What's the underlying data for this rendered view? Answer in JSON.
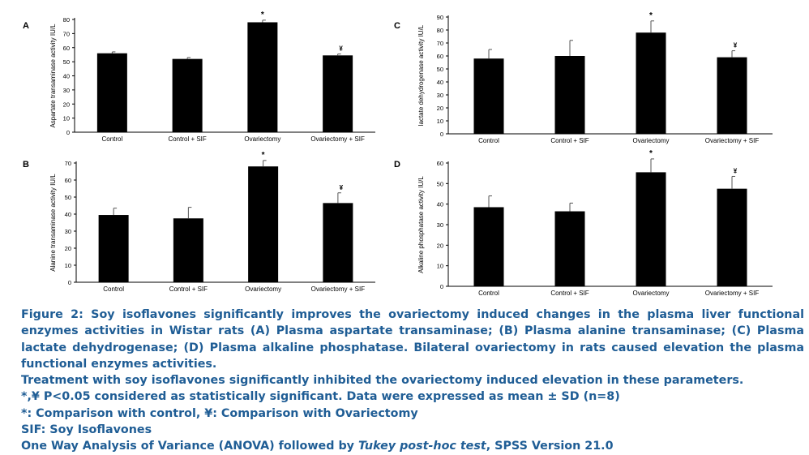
{
  "chart_data": [
    {
      "panel": "A",
      "type": "bar",
      "ylabel": "Aspartate transaminase activity IU/L",
      "categories": [
        "Control",
        "Control + SIF",
        "Ovariectomy",
        "Ovariectomy + SIF"
      ],
      "values": [
        56,
        52,
        78,
        54.5
      ],
      "errors": [
        1,
        1,
        1.5,
        1
      ],
      "markers": [
        "",
        "",
        "*",
        "¥"
      ],
      "ylim": [
        0,
        80
      ],
      "yticks": [
        "0",
        "10",
        "20",
        "30",
        "40",
        "50",
        "60",
        "70",
        "80"
      ],
      "grid": false
    },
    {
      "panel": "B",
      "type": "bar",
      "ylabel": "Alanine transaminase activity IU/L",
      "categories": [
        "Control",
        "Control + SIF",
        "Ovariectomy",
        "Ovariectomy + SIF"
      ],
      "values": [
        39.5,
        37.5,
        68,
        46.5
      ],
      "errors": [
        4,
        6.5,
        3.5,
        6
      ],
      "markers": [
        "",
        "",
        "*",
        "¥"
      ],
      "ylim": [
        0,
        70
      ],
      "yticks": [
        "0",
        "10",
        "20",
        "30",
        "40",
        "50",
        "60",
        "70"
      ],
      "grid": false
    },
    {
      "panel": "C",
      "type": "bar",
      "ylabel": "lactate dehydrogenase activity IU/L",
      "categories": [
        "Control",
        "Control + SIF",
        "Ovariectomy",
        "Ovariectomy + SIF"
      ],
      "values": [
        58,
        60,
        78,
        59
      ],
      "errors": [
        7,
        12,
        9,
        5
      ],
      "markers": [
        "",
        "",
        "*",
        "¥"
      ],
      "ylim": [
        0,
        90
      ],
      "yticks": [
        "0",
        "10",
        "20",
        "30",
        "40",
        "50",
        "60",
        "70",
        "80",
        "90"
      ],
      "grid": false
    },
    {
      "panel": "D",
      "type": "bar",
      "ylabel": "Alkaline phosphatase activity IU/L",
      "categories": [
        "Control",
        "Control + SIF",
        "Ovariectomy",
        "Ovariectomy + SIF"
      ],
      "values": [
        38.5,
        36.5,
        55.5,
        47.5
      ],
      "errors": [
        5.5,
        4,
        6.5,
        6
      ],
      "markers": [
        "",
        "",
        "*",
        "¥"
      ],
      "ylim": [
        0,
        60
      ],
      "yticks": [
        "0",
        "10",
        "20",
        "30",
        "40",
        "50",
        "60"
      ],
      "grid": false
    }
  ],
  "caption": {
    "paragraph": "Figure 2: Soy isoflavones significantly improves the ovariectomy induced changes in the plasma liver functional enzymes activities in Wistar rats (A) Plasma aspartate transaminase; (B) Plasma alanine transaminase; (C) Plasma lactate dehydrogenase; (D) Plasma alkaline phosphatase. Bilateral ovariectomy in rats caused elevation the plasma functional enzymes activities.",
    "line_treatment": "Treatment with soy isoflavones significantly inhibited the ovariectomy induced elevation in these parameters.",
    "line_significance": "*,¥ P<0.05 considered as statistically significant. Data were expressed as mean ± SD (n=8)",
    "line_comparison": "*: Comparison with control, ¥: Comparison with Ovariectomy",
    "line_sif": "SIF: Soy Isoflavones",
    "line_anova_1": "One Way Analysis of Variance (ANOVA) followed by ",
    "line_anova_italic": "Tukey post-hoc test",
    "line_anova_2": ", SPSS Version 21.0"
  },
  "colors": {
    "bar": "#000000",
    "caption": "#1f5d95"
  }
}
